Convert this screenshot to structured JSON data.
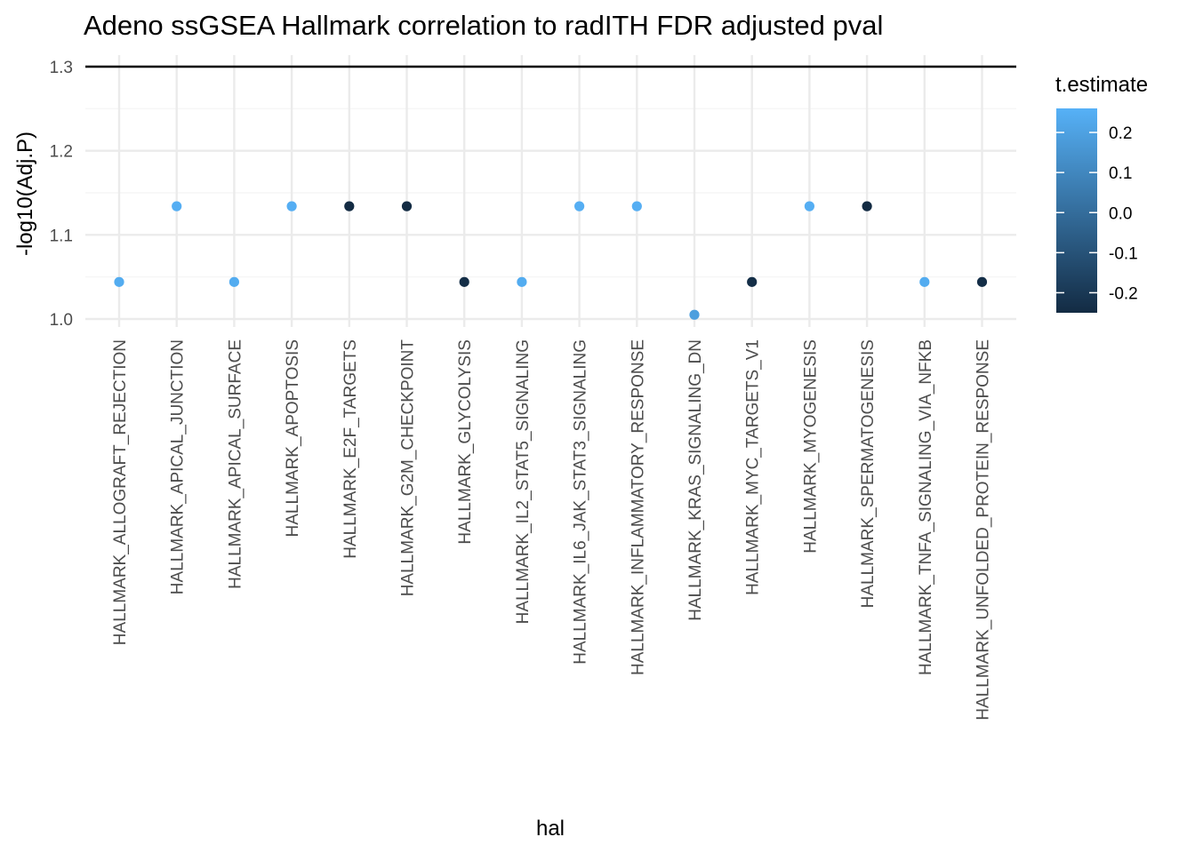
{
  "chart_data": {
    "type": "scatter",
    "title": "Adeno ssGSEA Hallmark correlation to radITH FDR adjusted pval",
    "xlabel": "hal",
    "ylabel": "-log10(Adj.P)",
    "ylim": [
      0.995,
      1.3
    ],
    "yticks": [
      1.0,
      1.1,
      1.2,
      1.3
    ],
    "ytick_labels": [
      "1.0",
      "1.1",
      "1.2",
      "1.3"
    ],
    "reference_line": 1.3,
    "grid": true,
    "categories": [
      "HALLMARK_ALLOGRAFT_REJECTION",
      "HALLMARK_APICAL_JUNCTION",
      "HALLMARK_APICAL_SURFACE",
      "HALLMARK_APOPTOSIS",
      "HALLMARK_E2F_TARGETS",
      "HALLMARK_G2M_CHECKPOINT",
      "HALLMARK_GLYCOLYSIS",
      "HALLMARK_IL2_STAT5_SIGNALING",
      "HALLMARK_IL6_JAK_STAT3_SIGNALING",
      "HALLMARK_INFLAMMATORY_RESPONSE",
      "HALLMARK_KRAS_SIGNALING_DN",
      "HALLMARK_MYC_TARGETS_V1",
      "HALLMARK_MYOGENESIS",
      "HALLMARK_SPERMATOGENESIS",
      "HALLMARK_TNFA_SIGNALING_VIA_NFKB",
      "HALLMARK_UNFOLDED_PROTEIN_RESPONSE"
    ],
    "values": [
      1.044,
      1.134,
      1.044,
      1.134,
      1.134,
      1.134,
      1.044,
      1.044,
      1.134,
      1.134,
      1.005,
      1.044,
      1.134,
      1.134,
      1.044,
      1.044
    ],
    "color_values": [
      0.24,
      0.25,
      0.24,
      0.25,
      -0.25,
      -0.25,
      -0.24,
      0.24,
      0.25,
      0.25,
      0.19,
      -0.24,
      0.25,
      -0.25,
      0.24,
      -0.24
    ],
    "legend": {
      "title": "t.estimate",
      "placement": "right",
      "range": [
        -0.25,
        0.26
      ],
      "ticks": [
        0.2,
        0.1,
        0.0,
        -0.1,
        -0.2
      ],
      "tick_labels": [
        "0.2",
        "0.1",
        "0.0",
        "-0.1",
        "-0.2"
      ],
      "color_low": "#132B43",
      "color_high": "#56B1F7"
    },
    "colors": {
      "reference_line": "#000000",
      "grid": "#ebebeb"
    }
  }
}
